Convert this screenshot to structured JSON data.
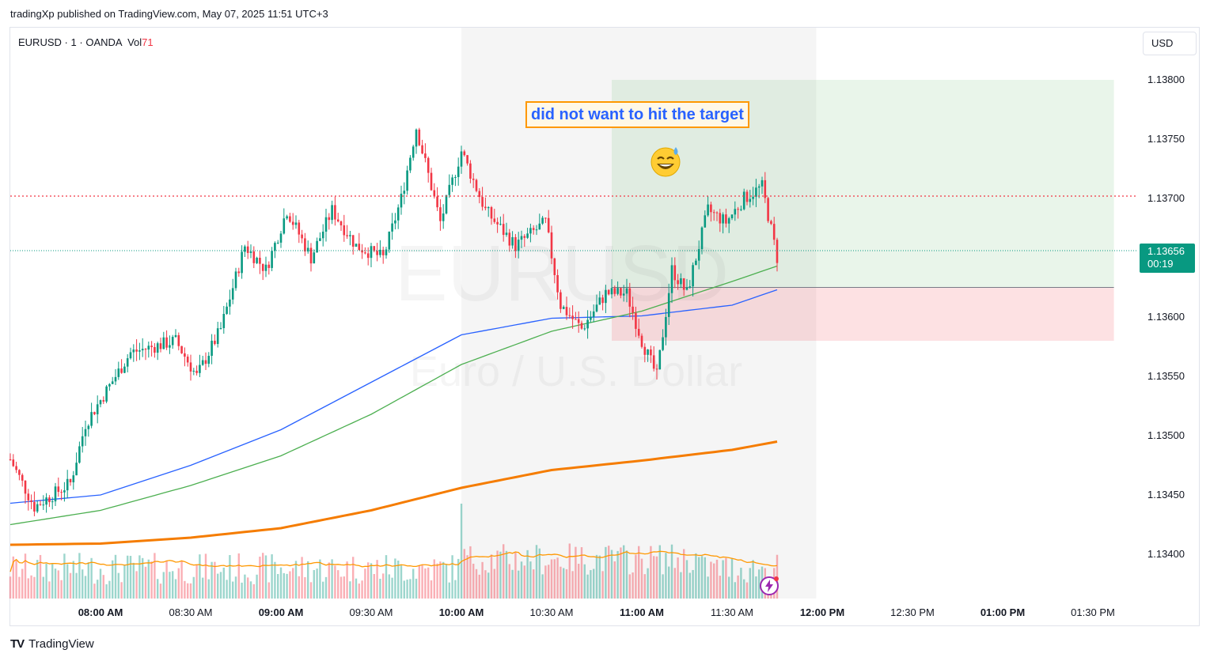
{
  "credit": "tradingXp published on TradingView.com, May 07, 2025 11:51 UTC+3",
  "symbol": {
    "name": "EURUSD",
    "sep": "·",
    "interval": "1",
    "broker": "OANDA",
    "vol_label": "Vol",
    "vol_value": "71"
  },
  "currency_button": "USD",
  "watermark": {
    "ticker": "EURUSD",
    "description": "Euro / U.S. Dollar"
  },
  "annotation": "did not want to hit the target",
  "last_price": {
    "value": "1.13656",
    "countdown": "00:19"
  },
  "footer": {
    "logo": "TV",
    "brand": "TradingView"
  },
  "colors": {
    "up": "#089981",
    "down": "#f23645",
    "ema_fast": "#2962ff",
    "ema_mid": "#4caf50",
    "ema_slow": "#f57c00",
    "vol_ma": "#ff9800"
  },
  "chart_data": {
    "type": "candlestick",
    "title": "EURUSD · 1 · OANDA",
    "y_ticks": [
      "1.13800",
      "1.13750",
      "1.13700",
      "1.13650",
      "1.13600",
      "1.13550",
      "1.13500",
      "1.13450",
      "1.13400"
    ],
    "ylim": [
      1.1337,
      1.1383
    ],
    "x_ticks": [
      {
        "label": "08:00 AM",
        "minute": 30,
        "bold": true
      },
      {
        "label": "08:30 AM",
        "minute": 60,
        "bold": false
      },
      {
        "label": "09:00 AM",
        "minute": 90,
        "bold": true
      },
      {
        "label": "09:30 AM",
        "minute": 120,
        "bold": false
      },
      {
        "label": "10:00 AM",
        "minute": 150,
        "bold": true
      },
      {
        "label": "10:30 AM",
        "minute": 180,
        "bold": false
      },
      {
        "label": "11:00 AM",
        "minute": 210,
        "bold": true
      },
      {
        "label": "11:30 AM",
        "minute": 240,
        "bold": false
      },
      {
        "label": "12:00 PM",
        "minute": 270,
        "bold": true
      },
      {
        "label": "12:30 PM",
        "minute": 300,
        "bold": false
      },
      {
        "label": "01:00 PM",
        "minute": 330,
        "bold": true
      },
      {
        "label": "01:30 PM",
        "minute": 360,
        "bold": false
      }
    ],
    "close_keypoints": [
      [
        0,
        1.1348
      ],
      [
        8,
        1.1344
      ],
      [
        20,
        1.1346
      ],
      [
        25,
        1.1351
      ],
      [
        40,
        1.1357
      ],
      [
        55,
        1.1358
      ],
      [
        62,
        1.1355
      ],
      [
        70,
        1.1359
      ],
      [
        78,
        1.1366
      ],
      [
        85,
        1.1364
      ],
      [
        92,
        1.1369
      ],
      [
        100,
        1.1365
      ],
      [
        107,
        1.1369
      ],
      [
        115,
        1.1366
      ],
      [
        124,
        1.1365
      ],
      [
        130,
        1.137
      ],
      [
        135,
        1.1376
      ],
      [
        143,
        1.1368
      ],
      [
        150,
        1.1374
      ],
      [
        158,
        1.1369
      ],
      [
        168,
        1.1366
      ],
      [
        178,
        1.1368
      ],
      [
        183,
        1.1361
      ],
      [
        190,
        1.1359
      ],
      [
        198,
        1.1362
      ],
      [
        205,
        1.1362
      ],
      [
        210,
        1.1358
      ],
      [
        215,
        1.1355
      ],
      [
        220,
        1.1364
      ],
      [
        225,
        1.1362
      ],
      [
        232,
        1.1369
      ],
      [
        238,
        1.1368
      ],
      [
        244,
        1.137
      ],
      [
        250,
        1.1371
      ],
      [
        255,
        1.1365
      ]
    ],
    "resistance_level": 1.13702,
    "last_price_value": 1.13656,
    "position": {
      "type": "long",
      "entry": 1.13625,
      "target": 1.138,
      "stop": 1.1358,
      "start_minute": 200,
      "end_minute": 367
    },
    "highlight_range_minutes": [
      150,
      268
    ],
    "emas": [
      {
        "name": "EMA fast",
        "color": "#2962ff",
        "points": [
          [
            0,
            1.13443
          ],
          [
            30,
            1.1345
          ],
          [
            60,
            1.13475
          ],
          [
            90,
            1.13505
          ],
          [
            120,
            1.13545
          ],
          [
            150,
            1.13585
          ],
          [
            180,
            1.13599
          ],
          [
            210,
            1.13601
          ],
          [
            240,
            1.1361
          ],
          [
            255,
            1.13623
          ]
        ]
      },
      {
        "name": "EMA mid",
        "color": "#4caf50",
        "points": [
          [
            0,
            1.13425
          ],
          [
            30,
            1.13437
          ],
          [
            60,
            1.13458
          ],
          [
            90,
            1.13483
          ],
          [
            120,
            1.13518
          ],
          [
            150,
            1.1356
          ],
          [
            180,
            1.13588
          ],
          [
            210,
            1.13605
          ],
          [
            240,
            1.1363
          ],
          [
            255,
            1.13643
          ]
        ]
      },
      {
        "name": "EMA slow",
        "color": "#f57c00",
        "points": [
          [
            0,
            1.13408
          ],
          [
            30,
            1.13409
          ],
          [
            60,
            1.13414
          ],
          [
            90,
            1.13422
          ],
          [
            120,
            1.13437
          ],
          [
            150,
            1.13456
          ],
          [
            180,
            1.13471
          ],
          [
            210,
            1.13479
          ],
          [
            240,
            1.13488
          ],
          [
            255,
            1.13495
          ]
        ]
      }
    ],
    "volume": {
      "max": 120,
      "typical": [
        20,
        50
      ]
    }
  }
}
